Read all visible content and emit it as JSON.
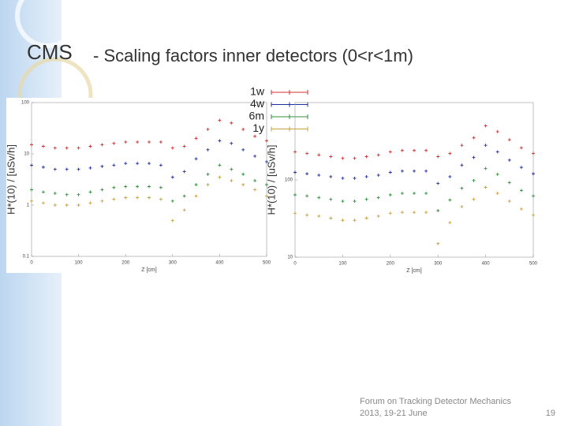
{
  "title": {
    "main": "CMS",
    "rest": "- Scaling factors inner detectors (0<r<1m)"
  },
  "footer": {
    "line1": "Forum on Tracking Detector Mechanics",
    "line2": "2013, 19-21 June",
    "page": "19"
  },
  "chart_data": [
    {
      "type": "scatter",
      "ylabel": "H*(10) / [uSv/h]",
      "xlabel": "Z [cm]",
      "log_y": true,
      "legend": true,
      "xlim": [
        0,
        500
      ],
      "xticks": [
        0,
        100,
        200,
        300,
        400,
        500
      ],
      "ylim": [
        0.1,
        100
      ],
      "yticks": [
        0.1,
        1,
        10,
        100
      ],
      "x": [
        0,
        25,
        50,
        75,
        100,
        125,
        150,
        175,
        200,
        225,
        250,
        275,
        300,
        325,
        350,
        375,
        400,
        425,
        450,
        475,
        500
      ],
      "series": [
        {
          "name": "1w",
          "color": "#d03030",
          "values": [
            15,
            14,
            13,
            13,
            13,
            14,
            15,
            16,
            17,
            17,
            17,
            17,
            13,
            14,
            20,
            30,
            45,
            40,
            30,
            22,
            18
          ]
        },
        {
          "name": "4w",
          "color": "#2030a0",
          "values": [
            6,
            5.5,
            5,
            5,
            5,
            5.3,
            5.7,
            6,
            6.5,
            6.5,
            6.5,
            6,
            3.5,
            4.5,
            8,
            12,
            18,
            16,
            12,
            9,
            7
          ]
        },
        {
          "name": "6m",
          "color": "#30903a",
          "values": [
            2,
            1.8,
            1.7,
            1.6,
            1.6,
            1.8,
            2,
            2.2,
            2.3,
            2.3,
            2.3,
            2.2,
            1.2,
            1.5,
            2.5,
            4,
            6,
            5,
            4,
            3,
            2.5
          ]
        },
        {
          "name": "1y",
          "color": "#c8a040",
          "values": [
            1.2,
            1.1,
            1.0,
            1.0,
            1.0,
            1.1,
            1.2,
            1.3,
            1.4,
            1.4,
            1.4,
            1.3,
            0.5,
            0.8,
            1.5,
            2.5,
            3.5,
            3,
            2.5,
            2,
            1.5
          ]
        }
      ]
    },
    {
      "type": "scatter",
      "ylabel": "H*(10) / [uSv/h]",
      "xlabel": "Z [cm]",
      "log_y": true,
      "legend": false,
      "xlim": [
        0,
        500
      ],
      "xticks": [
        0,
        100,
        200,
        300,
        400,
        500
      ],
      "ylim": [
        10,
        1000
      ],
      "yticks": [
        10,
        100
      ],
      "x": [
        0,
        25,
        50,
        75,
        100,
        125,
        150,
        175,
        200,
        225,
        250,
        275,
        300,
        325,
        350,
        375,
        400,
        425,
        450,
        475,
        500
      ],
      "series": [
        {
          "color": "#d03030",
          "values": [
            230,
            220,
            210,
            200,
            190,
            190,
            200,
            210,
            230,
            240,
            240,
            240,
            200,
            220,
            280,
            350,
            500,
            420,
            330,
            260,
            220
          ]
        },
        {
          "color": "#2030a0",
          "values": [
            125,
            120,
            115,
            110,
            105,
            105,
            110,
            115,
            125,
            130,
            130,
            130,
            90,
            110,
            155,
            195,
            280,
            230,
            180,
            145,
            120
          ]
        },
        {
          "color": "#30903a",
          "values": [
            64,
            62,
            59,
            56,
            53,
            53,
            56,
            59,
            64,
            67,
            67,
            67,
            40,
            55,
            78,
            98,
            140,
            118,
            92,
            73,
            62
          ]
        },
        {
          "color": "#c8a040",
          "values": [
            37,
            35,
            34,
            32,
            30,
            30,
            32,
            34,
            37,
            38,
            38,
            38,
            15,
            28,
            45,
            56,
            80,
            67,
            53,
            42,
            35
          ]
        }
      ]
    }
  ]
}
